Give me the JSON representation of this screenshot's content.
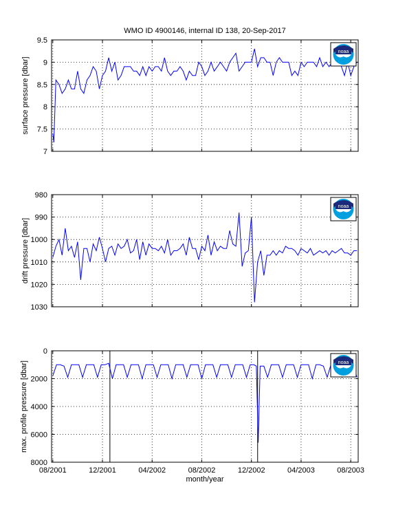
{
  "title": "WMO ID 4900146, internal ID 138, 20-Sep-2017",
  "x_axis": {
    "label": "month/year",
    "tick_labels": [
      "08/2001",
      "12/2001",
      "04/2002",
      "08/2002",
      "12/2002",
      "04/2003",
      "08/2003"
    ],
    "tick_months": [
      0,
      4,
      8,
      12,
      16,
      20,
      24
    ],
    "range_months": [
      -0.1,
      24.6
    ]
  },
  "logo": {
    "name": "noaa-logo",
    "text": "noaa"
  },
  "colors": {
    "series": "#0000ff",
    "axis": "#000000",
    "grid": "#000000",
    "logo_blue": "#1b2a7a",
    "logo_cyan": "#00a0e0"
  },
  "chart_data": [
    {
      "type": "line",
      "ylabel": "surface pressure [dbar]",
      "ylim": [
        7,
        9.5
      ],
      "y_reversed": false,
      "yticks": [
        7,
        7.5,
        8,
        8.5,
        9,
        9.5
      ],
      "ytick_labels": [
        "7",
        "7.5",
        "8",
        "8.5",
        "9",
        "9.5"
      ],
      "grid": true,
      "series": [
        {
          "x": [
            0,
            0.08,
            0.25,
            0.5,
            0.75,
            1,
            1.25,
            1.5,
            1.75,
            2,
            2.25,
            2.5,
            2.75,
            3,
            3.25,
            3.5,
            3.75,
            4,
            4.25,
            4.5,
            4.75,
            5,
            5.25,
            5.5,
            5.75,
            6,
            6.25,
            6.5,
            6.75,
            7,
            7.25,
            7.5,
            7.75,
            8,
            8.25,
            8.5,
            8.75,
            9,
            9.25,
            9.5,
            9.75,
            10,
            10.25,
            10.5,
            10.75,
            11,
            11.25,
            11.5,
            11.75,
            12,
            12.25,
            12.5,
            12.75,
            13,
            13.25,
            13.5,
            13.75,
            14,
            14.25,
            14.5,
            14.75,
            15,
            15.25,
            15.5,
            15.75,
            16,
            16.25,
            16.5,
            16.75,
            17,
            17.25,
            17.5,
            17.75,
            18,
            18.25,
            18.5,
            18.75,
            19,
            19.25,
            19.5,
            19.75,
            20,
            20.25,
            20.5,
            20.75,
            21,
            21.25,
            21.5,
            21.75,
            22,
            22.25,
            22.5,
            22.75,
            23,
            23.25,
            23.5,
            23.75,
            24,
            24.25,
            24.5
          ],
          "y": [
            7.4,
            7.2,
            8.6,
            8.5,
            8.3,
            8.4,
            8.6,
            8.4,
            8.4,
            8.8,
            8.4,
            8.3,
            8.6,
            8.7,
            8.9,
            8.8,
            8.4,
            8.7,
            8.8,
            9.1,
            8.8,
            9.0,
            8.6,
            8.7,
            8.9,
            8.9,
            8.9,
            8.8,
            8.8,
            8.7,
            8.9,
            8.7,
            8.9,
            8.8,
            8.9,
            8.9,
            8.8,
            9.1,
            8.8,
            8.7,
            8.8,
            8.8,
            8.9,
            8.8,
            8.6,
            8.8,
            8.7,
            8.7,
            9.0,
            8.9,
            8.7,
            8.8,
            9.0,
            8.8,
            8.9,
            9.0,
            8.9,
            8.8,
            9.0,
            9.1,
            9.2,
            8.8,
            8.9,
            9.0,
            9.0,
            9.0,
            9.3,
            8.9,
            9.1,
            9.1,
            9.0,
            9.0,
            8.7,
            9.0,
            9.1,
            9.0,
            9.0,
            9.0,
            8.7,
            8.8,
            8.7,
            9.0,
            8.9,
            9.0,
            9.0,
            9.0,
            8.9,
            9.1,
            8.9,
            9.0,
            8.9,
            9.0,
            9.0,
            9.1,
            8.9,
            8.7,
            9.0,
            8.7,
            8.9,
            9.0
          ],
          "color": "#0000ff"
        }
      ]
    },
    {
      "type": "line",
      "ylabel": "drift pressure [dbar]",
      "ylim": [
        980,
        1030
      ],
      "y_reversed": true,
      "yticks": [
        980,
        990,
        1000,
        1010,
        1020,
        1030
      ],
      "ytick_labels": [
        "980",
        "990",
        "1000",
        "1010",
        "1020",
        "1030"
      ],
      "grid": true,
      "series": [
        {
          "x": [
            0,
            0.25,
            0.5,
            0.75,
            1,
            1.25,
            1.5,
            1.75,
            2,
            2.25,
            2.5,
            2.75,
            3,
            3.25,
            3.5,
            3.75,
            4,
            4.25,
            4.5,
            4.75,
            5,
            5.25,
            5.5,
            5.75,
            6,
            6.25,
            6.5,
            6.75,
            7,
            7.25,
            7.5,
            7.75,
            8,
            8.25,
            8.5,
            8.75,
            9,
            9.25,
            9.5,
            9.75,
            10,
            10.25,
            10.5,
            10.75,
            11,
            11.25,
            11.5,
            11.75,
            12,
            12.25,
            12.5,
            12.75,
            13,
            13.25,
            13.5,
            13.75,
            14,
            14.25,
            14.5,
            14.75,
            15,
            15.25,
            15.5,
            15.75,
            16,
            16.25,
            16.5,
            16.75,
            17,
            17.25,
            17.5,
            17.75,
            18,
            18.25,
            18.5,
            18.75,
            19,
            19.25,
            19.5,
            19.75,
            20,
            20.25,
            20.5,
            20.75,
            21,
            21.25,
            21.5,
            21.75,
            22,
            22.25,
            22.5,
            22.75,
            23,
            23.25,
            23.5,
            23.75,
            24,
            24.25,
            24.5
          ],
          "y": [
            1008,
            1003,
            1000,
            1007,
            995,
            1005,
            1003,
            1008,
            1001,
            1018,
            1004,
            1004,
            1010,
            1002,
            1005,
            999,
            1004,
            1010,
            1004,
            1003,
            1007,
            1002,
            1004,
            1003,
            1000,
            1006,
            1005,
            1000,
            1009,
            1001,
            1007,
            1002,
            1004,
            1004,
            1005,
            1003,
            1006,
            1000,
            1007,
            1005,
            1005,
            1004,
            1002,
            1007,
            999,
            1004,
            1004,
            1009,
            1003,
            1005,
            998,
            1007,
            1001,
            1005,
            1003,
            1004,
            1004,
            996,
            1002,
            1003,
            988,
            1012,
            1006,
            1005,
            990,
            1028,
            1010,
            1005,
            1016,
            1007,
            1007,
            1005,
            1007,
            1005,
            1006,
            1003,
            1004,
            1004,
            1005,
            1007,
            1004,
            1005,
            1006,
            1004,
            1007,
            1006,
            1005,
            1006,
            1005,
            1007,
            1005,
            1006,
            1005,
            1004,
            1006,
            1006,
            1007,
            1005,
            1005
          ],
          "color": "#0000ff"
        }
      ]
    },
    {
      "type": "line",
      "ylabel": "max. profile pressure [dbar]",
      "ylim": [
        0,
        8000
      ],
      "y_reversed": true,
      "yticks": [
        0,
        2000,
        4000,
        6000,
        8000
      ],
      "ytick_labels": [
        "0",
        "2000",
        "4000",
        "6000",
        "8000"
      ],
      "grid": true,
      "vlines_months": [
        4.6,
        16.5
      ],
      "series": [
        {
          "x": [
            0,
            0.3,
            0.6,
            0.9,
            1.2,
            1.5,
            1.8,
            2.1,
            2.4,
            2.7,
            3.0,
            3.3,
            3.6,
            3.9,
            4.2,
            4.5,
            4.8,
            5.1,
            5.4,
            5.7,
            6.0,
            6.3,
            6.6,
            6.9,
            7.2,
            7.5,
            7.8,
            8.1,
            8.4,
            8.7,
            9.0,
            9.3,
            9.6,
            9.9,
            10.2,
            10.5,
            10.8,
            11.1,
            11.4,
            11.7,
            12.0,
            12.3,
            12.6,
            12.9,
            13.2,
            13.5,
            13.8,
            14.1,
            14.4,
            14.7,
            15.0,
            15.3,
            15.6,
            15.9,
            16.2,
            16.4,
            16.55,
            16.7,
            17.0,
            17.3,
            17.6,
            17.9,
            18.2,
            18.5,
            18.8,
            19.1,
            19.4,
            19.7,
            20.0,
            20.3,
            20.6,
            20.9,
            21.2,
            21.5,
            21.8,
            22.1,
            22.4,
            22.7,
            23.0,
            23.3,
            23.6,
            23.9,
            24.2,
            24.5
          ],
          "y": [
            1800,
            1000,
            1000,
            1100,
            1900,
            1000,
            1000,
            1000,
            1900,
            1000,
            1000,
            1000,
            1900,
            1000,
            1000,
            900,
            2000,
            1000,
            1000,
            1000,
            1900,
            1000,
            1000,
            1000,
            2000,
            1000,
            1000,
            1000,
            1900,
            1000,
            1000,
            1000,
            2000,
            1000,
            1000,
            1000,
            1900,
            1000,
            1000,
            1000,
            2000,
            1000,
            1000,
            1000,
            1900,
            1000,
            1000,
            1000,
            1900,
            1000,
            1000,
            1000,
            1900,
            1000,
            1000,
            1100,
            6600,
            1100,
            1100,
            1900,
            1000,
            1000,
            1000,
            1900,
            1000,
            1000,
            1000,
            1900,
            1000,
            1000,
            1000,
            2000,
            1000,
            1000,
            1100,
            1900,
            1000,
            1000,
            1000,
            1900,
            1000,
            1000,
            1000,
            1900
          ],
          "color": "#0000ff"
        }
      ]
    }
  ]
}
